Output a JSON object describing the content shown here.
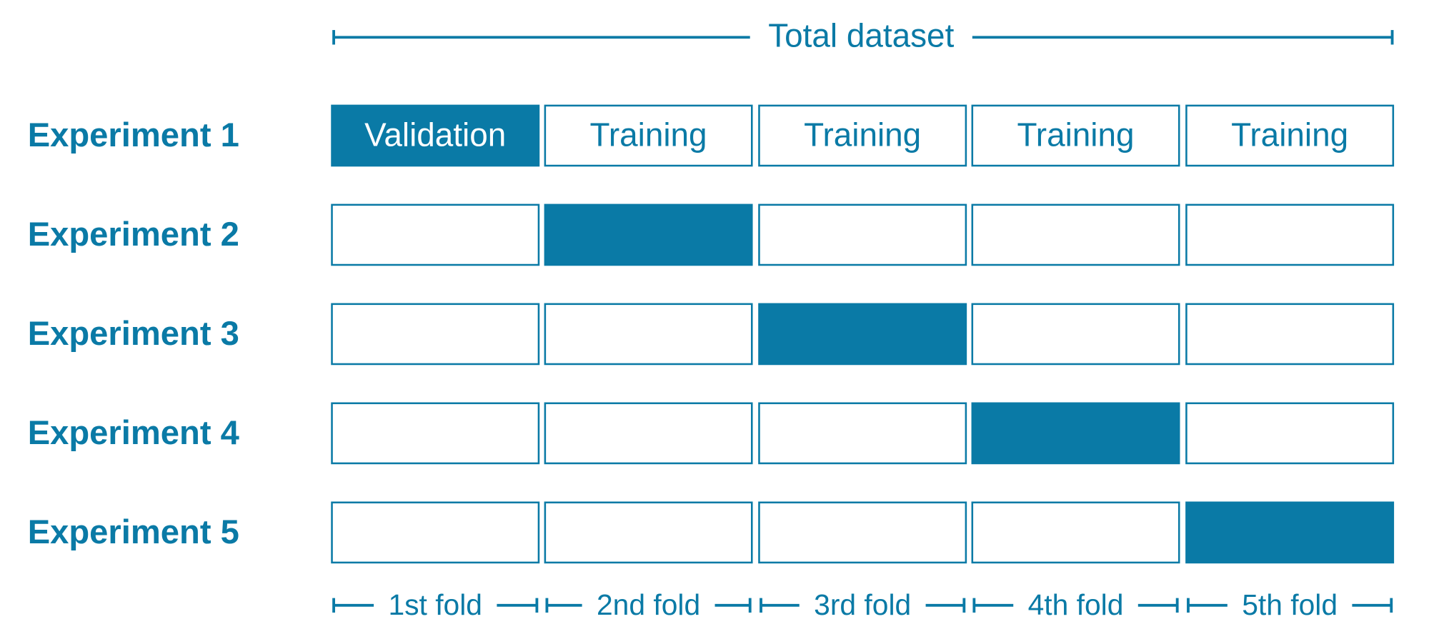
{
  "header": {
    "title": "Total dataset"
  },
  "experiments": [
    {
      "label": "Experiment 1",
      "cells": [
        "Validation",
        "Training",
        "Training",
        "Training",
        "Training"
      ]
    },
    {
      "label": "Experiment 2"
    },
    {
      "label": "Experiment 3"
    },
    {
      "label": "Experiment 4"
    },
    {
      "label": "Experiment 5"
    }
  ],
  "folds": [
    "1st fold",
    "2nd fold",
    "3rd fold",
    "4th fold",
    "5th fold"
  ]
}
